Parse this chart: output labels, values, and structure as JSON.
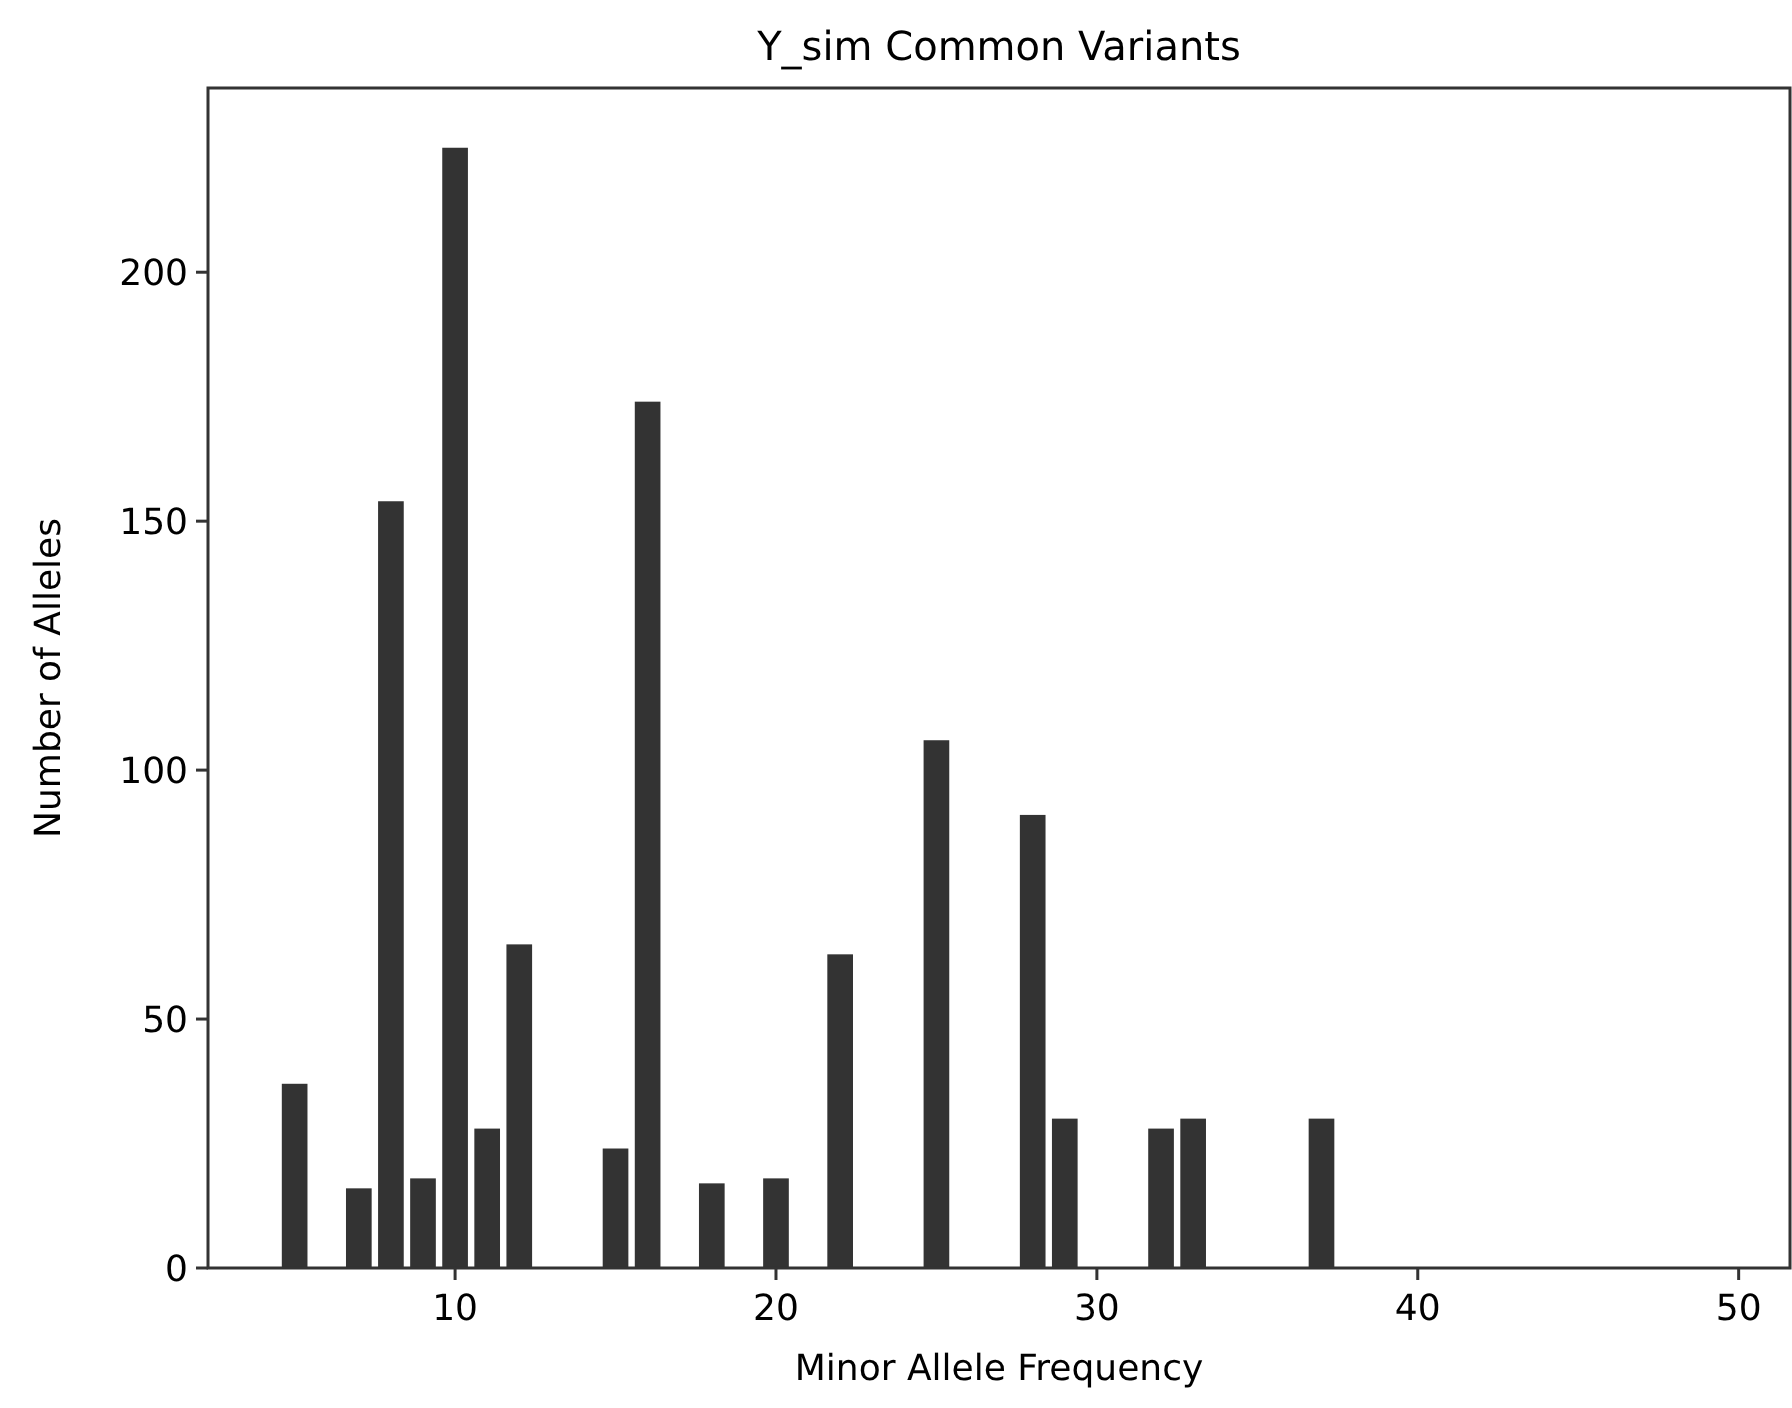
{
  "chart_data": {
    "type": "bar",
    "title": "Y_sim Common Variants",
    "xlabel": "Minor Allele Frequency",
    "ylabel": "Number of Alleles",
    "x": [
      5,
      7,
      8,
      9,
      10,
      11,
      12,
      15,
      16,
      18,
      20,
      22,
      25,
      28,
      29,
      32,
      33,
      37
    ],
    "values": [
      37,
      16,
      154,
      18,
      225,
      28,
      65,
      24,
      174,
      17,
      18,
      63,
      106,
      91,
      30,
      28,
      30,
      30
    ],
    "color": "#333333",
    "xlim": [
      2.3,
      51.6
    ],
    "xticks": [
      10,
      20,
      30,
      40,
      50
    ],
    "ylim": [
      0,
      237
    ],
    "yticks": [
      0,
      50,
      100,
      150,
      200
    ]
  }
}
